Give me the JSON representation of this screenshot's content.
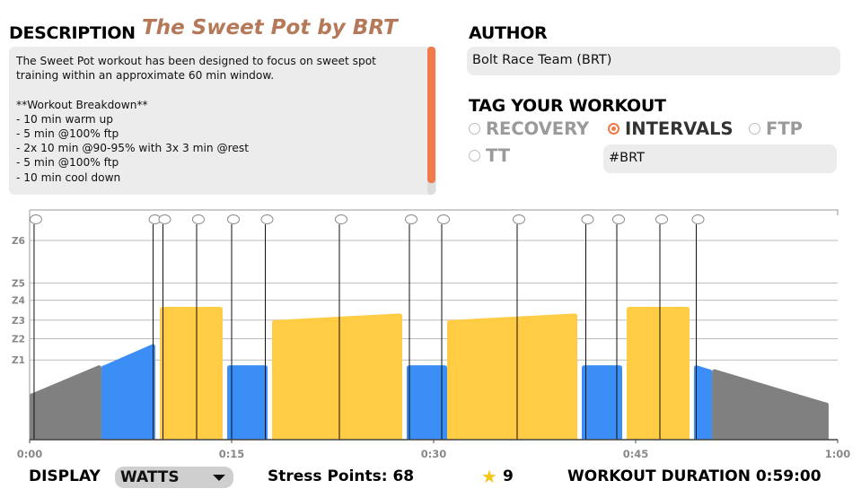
{
  "description": {
    "title": "DESCRIPTION",
    "workout_name": "The Sweet Pot by BRT",
    "text": "The Sweet Pot workout has been designed to focus on sweet spot training within an approximate 60 min window.\n\n**Workout Breakdown**\n- 10 min warm up\n- 5 min @100% ftp\n- 2x 10 min @90-95% with 3x 3 min @rest\n- 5 min @100% ftp\n- 10 min cool down"
  },
  "author": {
    "title": "AUTHOR",
    "value": "Bolt Race Team (BRT)"
  },
  "tags": {
    "title": "TAG YOUR WORKOUT",
    "options": [
      {
        "label": "RECOVERY",
        "selected": false
      },
      {
        "label": "INTERVALS",
        "selected": true
      },
      {
        "label": "FTP",
        "selected": false
      },
      {
        "label": "TT",
        "selected": false
      }
    ],
    "custom_tag": "#BRT"
  },
  "chart_data": {
    "type": "area",
    "x_ticks": [
      "0:00",
      "0:15",
      "0:30",
      "0:45",
      "1:00"
    ],
    "x_range_min": [
      0,
      60
    ],
    "zones": [
      "Z1",
      "Z2",
      "Z3",
      "Z4",
      "Z5",
      "Z6"
    ],
    "zone_thresholds": [
      0.6,
      0.76,
      0.9,
      1.05,
      1.18,
      1.5
    ],
    "y_range": [
      0,
      1.75
    ],
    "colors": {
      "gray": "#808080",
      "blue": "#3b8ef5",
      "yellow": "#ffcc44"
    },
    "segments": [
      {
        "start": 0,
        "end": 5.33,
        "from": 0.35,
        "to": 0.56,
        "color": "gray"
      },
      {
        "start": 5.33,
        "end": 9.33,
        "from": 0.56,
        "to": 0.72,
        "color": "blue"
      },
      {
        "start": 9.67,
        "end": 14.33,
        "from": 1.0,
        "to": 1.0,
        "color": "yellow"
      },
      {
        "start": 14.67,
        "end": 17.67,
        "from": 0.56,
        "to": 0.56,
        "color": "blue"
      },
      {
        "start": 18.0,
        "end": 27.67,
        "from": 0.9,
        "to": 0.95,
        "color": "yellow"
      },
      {
        "start": 28.0,
        "end": 31.0,
        "from": 0.56,
        "to": 0.56,
        "color": "blue"
      },
      {
        "start": 31.0,
        "end": 40.67,
        "from": 0.9,
        "to": 0.95,
        "color": "yellow"
      },
      {
        "start": 41.0,
        "end": 44.0,
        "from": 0.56,
        "to": 0.56,
        "color": "blue"
      },
      {
        "start": 44.33,
        "end": 49.0,
        "from": 1.0,
        "to": 1.0,
        "color": "yellow"
      },
      {
        "start": 49.33,
        "end": 50.67,
        "from": 0.56,
        "to": 0.53,
        "color": "blue"
      },
      {
        "start": 50.67,
        "end": 59.33,
        "from": 0.53,
        "to": 0.28,
        "color": "gray"
      }
    ],
    "markers": [
      0.33,
      9.17,
      9.9,
      12.4,
      15.0,
      17.5,
      23.0,
      28.2,
      30.6,
      36.2,
      41.3,
      43.6,
      46.8,
      49.5
    ]
  },
  "footer": {
    "display_label": "DISPLAY",
    "display_value": "WATTS",
    "stress_points": "Stress Points: 68",
    "star_count": "9",
    "duration": "WORKOUT DURATION 0:59:00"
  }
}
